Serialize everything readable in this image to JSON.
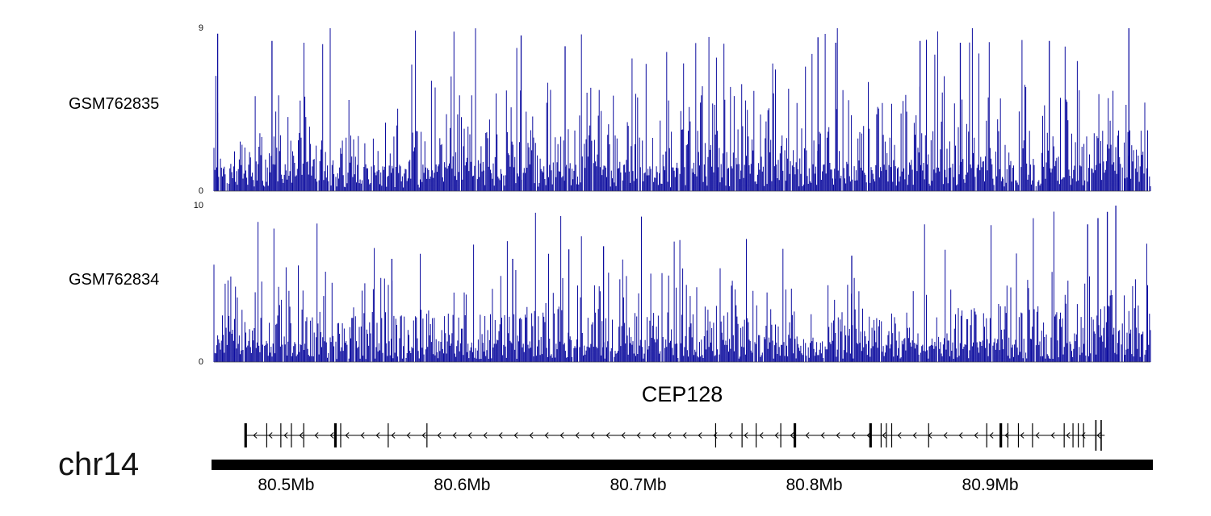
{
  "canvas": {
    "background": "#ffffff"
  },
  "labels": {
    "chromosome": "chr14",
    "gene_title": "CEP128"
  },
  "axis": {
    "units": "Mb",
    "region_mb": [
      80.459,
      80.991
    ],
    "ticks": [
      {
        "mb": 80.5,
        "label": "80.5Mb"
      },
      {
        "mb": 80.6,
        "label": "80.6Mb"
      },
      {
        "mb": 80.7,
        "label": "80.7Mb"
      },
      {
        "mb": 80.8,
        "label": "80.8Mb"
      },
      {
        "mb": 80.9,
        "label": "80.9Mb"
      }
    ]
  },
  "chart_data": [
    {
      "type": "coverage",
      "name": "GSM762835",
      "ylim": [
        0,
        9
      ],
      "yticks": [
        "9",
        "0"
      ],
      "color": "#0d0d9f",
      "seed": 101,
      "n": 1000,
      "envelope": [
        1.0,
        0.95,
        1.05,
        1.0,
        0.92,
        1.0,
        1.08,
        0.96,
        1.0,
        1.05,
        0.94,
        1.0,
        1.0,
        1.06,
        0.95,
        1.0,
        1.08,
        0.93,
        1.0,
        1.05,
        1.0,
        0.96,
        1.04,
        1.0
      ],
      "notable_peaks": [
        {
          "x": 0.004,
          "h": 8.7
        },
        {
          "x": 0.062,
          "h": 8.3
        },
        {
          "x": 0.328,
          "h": 8.6
        },
        {
          "x": 0.375,
          "h": 8.0
        },
        {
          "x": 0.645,
          "h": 8.5
        },
        {
          "x": 0.664,
          "h": 8.2
        },
        {
          "x": 0.754,
          "h": 8.3
        },
        {
          "x": 0.797,
          "h": 8.2
        },
        {
          "x": 0.892,
          "h": 8.3
        },
        {
          "x": 0.977,
          "h": 9.0
        }
      ]
    },
    {
      "type": "coverage",
      "name": "GSM762834",
      "ylim": [
        0,
        10
      ],
      "yticks": [
        "10",
        "0"
      ],
      "color": "#0d0d9f",
      "seed": 202,
      "n": 1000,
      "envelope": [
        0.95,
        0.9,
        1.0,
        0.92,
        0.95,
        1.0,
        0.9,
        0.95,
        1.05,
        0.92,
        0.95,
        1.0,
        0.9,
        0.95,
        1.0,
        0.92,
        0.95,
        1.0,
        0.95,
        1.0,
        0.95,
        1.0,
        1.15,
        1.45
      ],
      "notable_peaks": [
        {
          "x": 0.19,
          "h": 6.6
        },
        {
          "x": 0.319,
          "h": 6.6
        },
        {
          "x": 0.379,
          "h": 7.2
        },
        {
          "x": 0.416,
          "h": 7.4
        },
        {
          "x": 0.681,
          "h": 6.8
        },
        {
          "x": 0.933,
          "h": 8.8
        },
        {
          "x": 0.944,
          "h": 9.2
        },
        {
          "x": 0.954,
          "h": 9.6
        },
        {
          "x": 0.963,
          "h": 10.0
        }
      ]
    },
    {
      "type": "gene-model",
      "gene": "CEP128",
      "chrom": "chr14",
      "strand": "-",
      "span_mb": [
        80.477,
        80.965
      ],
      "exons": [
        {
          "mb": 80.477,
          "w": "b"
        },
        {
          "mb": 80.489,
          "w": "n"
        },
        {
          "mb": 80.497,
          "w": "n"
        },
        {
          "mb": 80.503,
          "w": "n"
        },
        {
          "mb": 80.51,
          "w": "n"
        },
        {
          "mb": 80.528,
          "w": "b"
        },
        {
          "mb": 80.531,
          "w": "n"
        },
        {
          "mb": 80.558,
          "w": "n"
        },
        {
          "mb": 80.58,
          "w": "n"
        },
        {
          "mb": 80.744,
          "w": "n"
        },
        {
          "mb": 80.759,
          "w": "n"
        },
        {
          "mb": 80.767,
          "w": "n"
        },
        {
          "mb": 80.781,
          "w": "n"
        },
        {
          "mb": 80.789,
          "w": "b"
        },
        {
          "mb": 80.832,
          "w": "b"
        },
        {
          "mb": 80.838,
          "w": "n"
        },
        {
          "mb": 80.841,
          "w": "n"
        },
        {
          "mb": 80.844,
          "w": "n"
        },
        {
          "mb": 80.865,
          "w": "n"
        },
        {
          "mb": 80.898,
          "w": "n"
        },
        {
          "mb": 80.906,
          "w": "b"
        },
        {
          "mb": 80.91,
          "w": "n"
        },
        {
          "mb": 80.916,
          "w": "n"
        },
        {
          "mb": 80.924,
          "w": "n"
        },
        {
          "mb": 80.942,
          "w": "n"
        },
        {
          "mb": 80.947,
          "w": "n"
        },
        {
          "mb": 80.95,
          "w": "n"
        },
        {
          "mb": 80.953,
          "w": "n"
        },
        {
          "mb": 80.96,
          "w": "t"
        },
        {
          "mb": 80.963,
          "w": "t"
        }
      ]
    }
  ]
}
